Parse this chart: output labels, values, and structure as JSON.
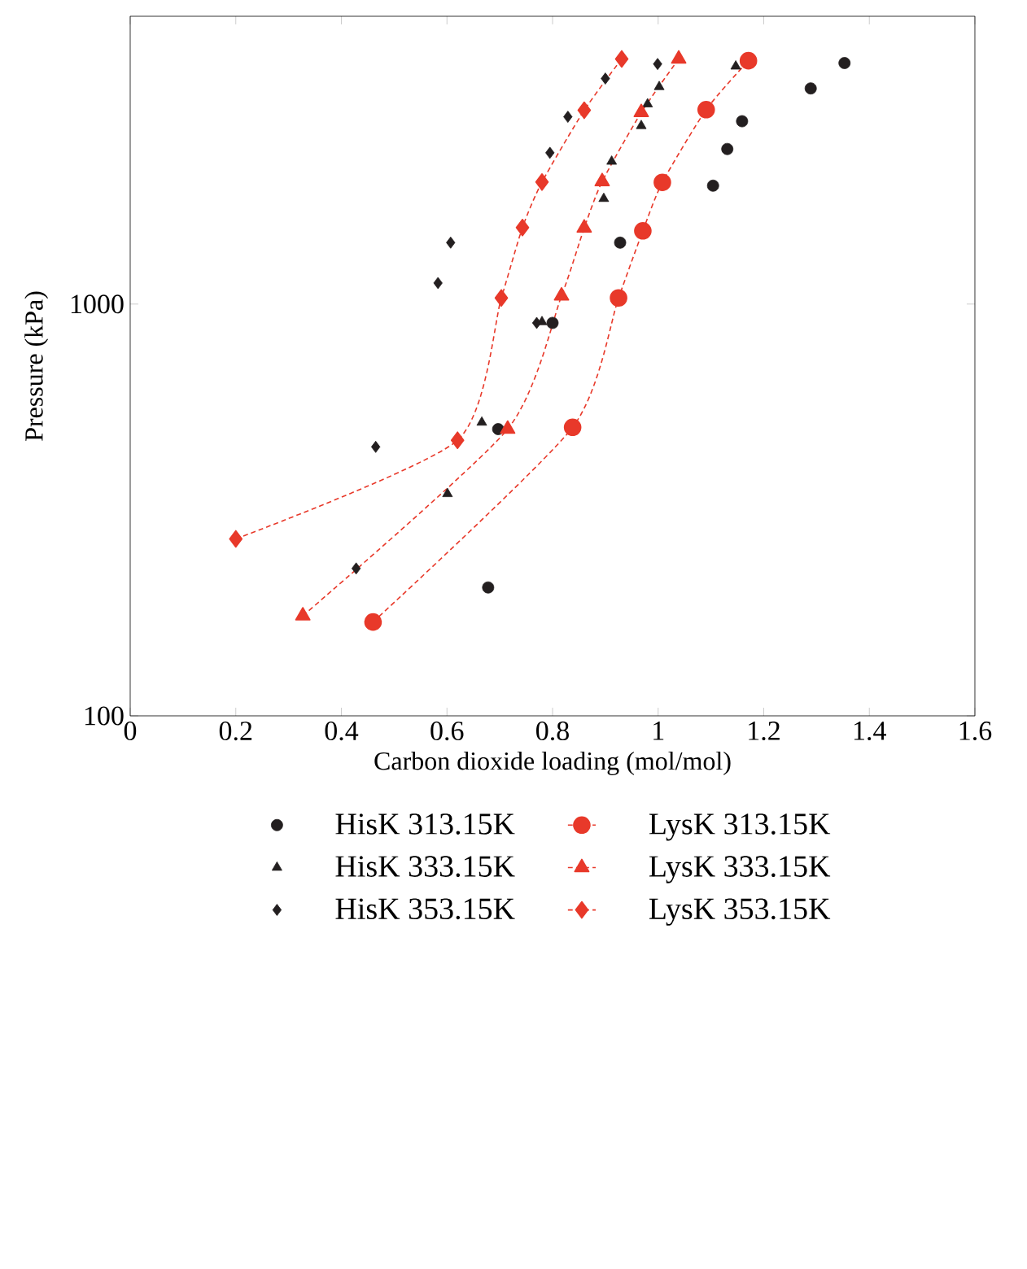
{
  "chart_data": {
    "type": "scatter",
    "xlabel": "Carbon dioxide loading (mol/mol)",
    "ylabel": "Pressure (kPa)",
    "xlim": [
      0,
      1.6
    ],
    "xticks": [
      0,
      0.2,
      0.4,
      0.6,
      0.8,
      1,
      1.2,
      1.4,
      1.6
    ],
    "ylim": [
      100,
      5000
    ],
    "yticks": [
      100,
      1000
    ],
    "log": "y",
    "legend": "bottom",
    "series": [
      {
        "name": "HisK 313.15K",
        "marker": "circle",
        "color": "#231f20",
        "x": [
          0.678,
          0.697,
          0.8,
          0.928,
          1.104,
          1.131,
          1.159,
          1.289,
          1.353
        ],
        "values": [
          205,
          497,
          900,
          1410,
          1939,
          2380,
          2780,
          3340,
          3850
        ]
      },
      {
        "name": "LysK 313.15K",
        "type": "line",
        "marker": "circle",
        "line_style": "dashed",
        "color": "#e8392a",
        "x": [
          0.46,
          0.838,
          0.925,
          0.971,
          1.008,
          1.091,
          1.171
        ],
        "values": [
          169,
          502,
          1035,
          1506,
          1975,
          2966,
          3900
        ]
      },
      {
        "name": "HisK 333.15K",
        "marker": "triangle",
        "color": "#231f20",
        "x": [
          0.601,
          0.666,
          0.78,
          0.897,
          0.912,
          0.968,
          0.98,
          1.002,
          1.147
        ],
        "values": [
          346,
          516,
          905,
          1803,
          2220,
          2710,
          3060,
          3370,
          3780
        ]
      },
      {
        "name": "LysK 333.15K",
        "type": "line",
        "marker": "triangle",
        "line_style": "dashed",
        "color": "#e8392a",
        "x": [
          0.327,
          0.715,
          0.817,
          0.86,
          0.894,
          0.968,
          1.039
        ],
        "values": [
          175,
          497,
          1047,
          1531,
          1985,
          2920,
          3940
        ]
      },
      {
        "name": "HisK 353.15K",
        "marker": "diamond",
        "color": "#231f20",
        "x": [
          0.428,
          0.465,
          0.583,
          0.607,
          0.77,
          0.795,
          0.829,
          0.9,
          0.999
        ],
        "values": [
          228,
          450,
          1125,
          1410,
          900,
          2330,
          2850,
          3530,
          3830
        ]
      },
      {
        "name": "LysK 353.15K",
        "type": "line",
        "marker": "diamond",
        "line_style": "dashed",
        "color": "#e8392a",
        "x": [
          0.2,
          0.62,
          0.703,
          0.743,
          0.78,
          0.86,
          0.931
        ],
        "values": [
          269,
          467,
          1035,
          1534,
          1979,
          2956,
          3940
        ]
      }
    ]
  }
}
